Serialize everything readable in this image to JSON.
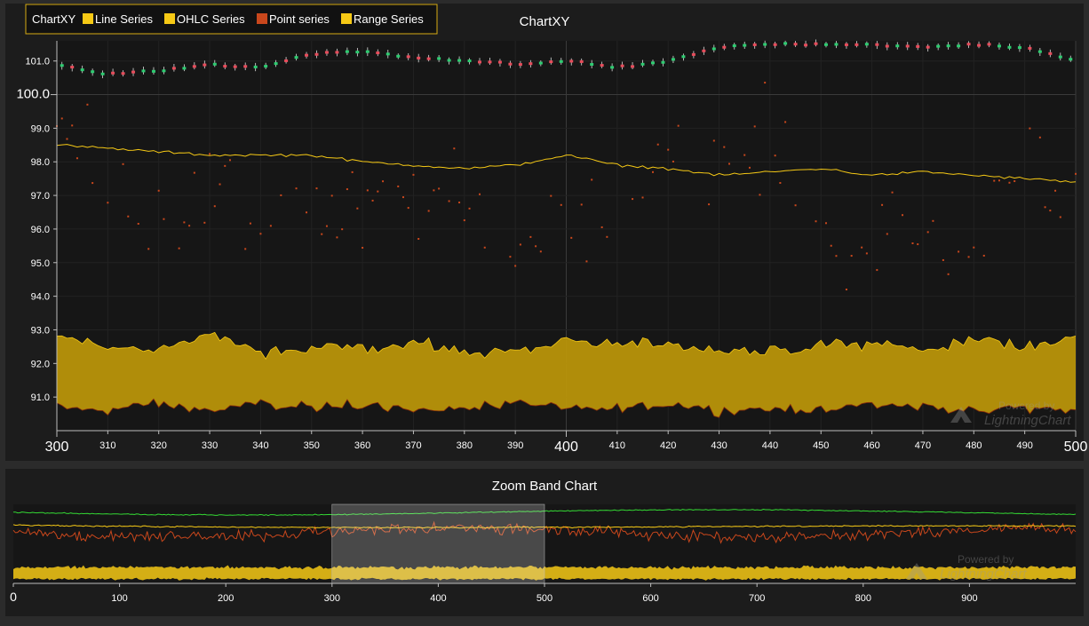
{
  "main_chart": {
    "title": "ChartXY",
    "legend": {
      "title": "ChartXY",
      "items": [
        {
          "label": "Line Series",
          "color": "#f6c915"
        },
        {
          "label": "OHLC Series",
          "color": "#f6c915"
        },
        {
          "label": "Point series",
          "color": "#c9471c"
        },
        {
          "label": "Range Series",
          "color": "#f6c915"
        }
      ]
    },
    "watermark": {
      "line1": "Powered by",
      "line2": "LightningChart"
    },
    "x_ticks": [
      "300",
      "310",
      "320",
      "330",
      "340",
      "350",
      "360",
      "370",
      "380",
      "390",
      "400",
      "410",
      "420",
      "430",
      "440",
      "450",
      "460",
      "470",
      "480",
      "490",
      "500"
    ],
    "y_ticks": [
      "91.0",
      "92.0",
      "93.0",
      "94.0",
      "95.0",
      "96.0",
      "97.0",
      "98.0",
      "99.0",
      "100.0",
      "101.0"
    ]
  },
  "zoom_chart": {
    "title": "Zoom Band Chart",
    "watermark": {
      "line1": "Powered by",
      "line2": "LightningChart"
    },
    "x_ticks": [
      "0",
      "100",
      "200",
      "300",
      "400",
      "500",
      "600",
      "700",
      "800",
      "900"
    ]
  },
  "colors": {
    "background": "#2b2b2b",
    "plot_background": "#161616",
    "line": "#f6c915",
    "range_fill": "#b8940a",
    "range_edge": "#f6c915",
    "points": "#c9471c",
    "ohlc_up": "#2ecc71",
    "ohlc_down": "#e74c5b",
    "zoom_green": "#34d934",
    "zoom_band": "#ffffff"
  },
  "chart_data": [
    {
      "type": "line",
      "title": "ChartXY",
      "xlim": [
        300,
        500
      ],
      "ylim": [
        90.0,
        101.6
      ],
      "series": [
        {
          "name": "Line Series",
          "type": "line",
          "x": [
            300,
            310,
            320,
            330,
            340,
            350,
            360,
            370,
            380,
            390,
            400,
            410,
            420,
            430,
            440,
            450,
            460,
            470,
            480,
            490,
            500
          ],
          "values": [
            98.5,
            98.4,
            98.3,
            98.2,
            98.2,
            98.2,
            98.0,
            97.9,
            97.8,
            97.9,
            98.2,
            97.9,
            97.8,
            97.6,
            97.7,
            97.8,
            97.6,
            97.7,
            97.6,
            97.5,
            97.4
          ]
        },
        {
          "name": "OHLC Series",
          "type": "ohlc",
          "x": [
            300,
            310,
            320,
            330,
            340,
            350,
            360,
            370,
            380,
            390,
            400,
            410,
            420,
            430,
            440,
            450,
            460,
            470,
            480,
            490,
            500
          ],
          "values": [
            100.9,
            100.6,
            100.7,
            100.9,
            100.8,
            101.2,
            101.3,
            101.1,
            101.0,
            100.9,
            101.0,
            100.8,
            101.0,
            101.4,
            101.5,
            101.5,
            101.5,
            101.4,
            101.5,
            101.4,
            101.0
          ]
        },
        {
          "name": "Point series",
          "type": "scatter",
          "x": [
            300,
            310,
            320,
            330,
            340,
            350,
            360,
            370,
            380,
            390,
            400,
            410,
            420,
            430,
            440,
            450,
            460,
            470,
            480,
            490,
            500
          ],
          "values": [
            99.0,
            97.7,
            96.3,
            97.1,
            96.1,
            97.0,
            96.4,
            97.1,
            96.5,
            95.5,
            97.0,
            96.0,
            98.8,
            97.3,
            98.8,
            95.8,
            95.6,
            96.0,
            95.3,
            98.8,
            96.8
          ]
        },
        {
          "name": "Range Series",
          "type": "area",
          "x": [
            300,
            310,
            320,
            330,
            340,
            350,
            360,
            370,
            380,
            390,
            400,
            410,
            420,
            430,
            440,
            450,
            460,
            470,
            480,
            490,
            500
          ],
          "low": [
            90.7,
            90.6,
            90.8,
            90.6,
            90.8,
            90.7,
            90.8,
            90.6,
            90.7,
            90.8,
            90.6,
            90.7,
            90.8,
            90.6,
            90.7,
            90.6,
            90.8,
            90.7,
            90.6,
            90.7,
            90.6
          ],
          "high": [
            92.8,
            92.5,
            92.4,
            92.9,
            92.3,
            92.4,
            92.5,
            92.6,
            92.3,
            92.4,
            92.7,
            92.5,
            92.6,
            92.4,
            92.3,
            92.5,
            92.6,
            92.4,
            92.7,
            92.5,
            92.8
          ]
        }
      ]
    },
    {
      "type": "line",
      "title": "Zoom Band Chart",
      "xlim": [
        0,
        1000
      ],
      "zoom_band": [
        300,
        500
      ],
      "series": [
        {
          "name": "",
          "type": "line",
          "color": "#34d934"
        },
        {
          "name": "",
          "type": "line",
          "color": "#f6c915"
        },
        {
          "name": "",
          "type": "line",
          "color": "#c9471c"
        },
        {
          "name": "",
          "type": "area",
          "color": "#f6c915"
        }
      ]
    }
  ]
}
